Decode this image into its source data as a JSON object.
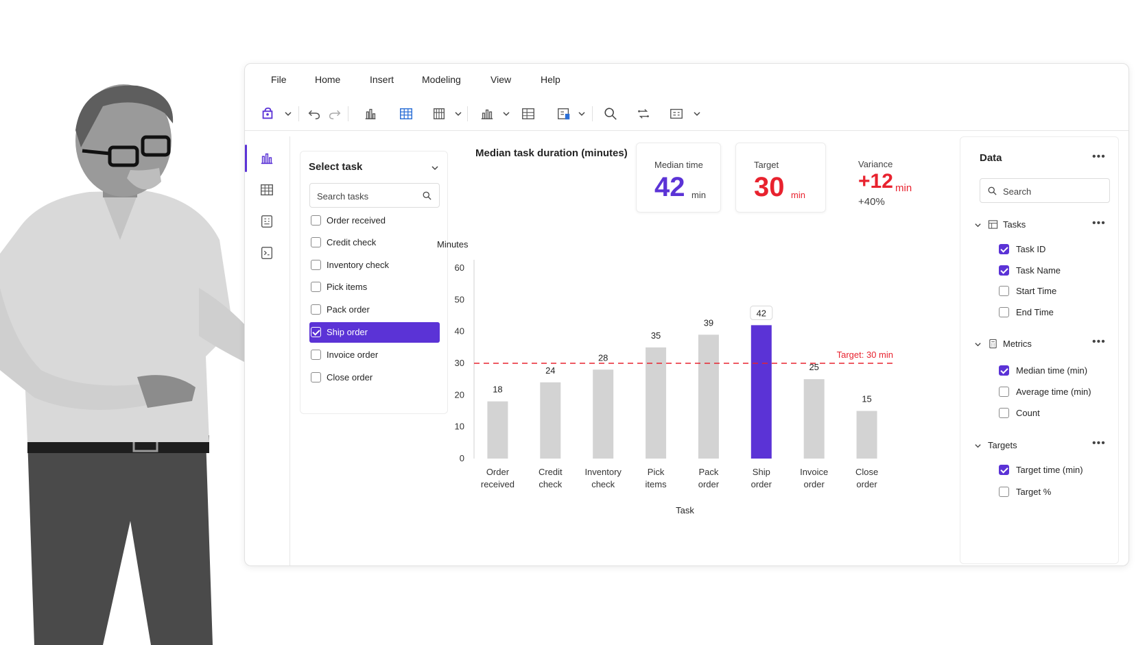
{
  "menu": [
    "File",
    "Home",
    "Insert",
    "Modeling",
    "View",
    "Help"
  ],
  "toolbar_icons": [
    "save-icon",
    "undo-icon",
    "redo-icon",
    "bar-chart-icon",
    "table-icon",
    "matrix-icon",
    "column-chart-icon",
    "grid-icon",
    "card-icon",
    "search-icon",
    "transform-icon",
    "options-icon"
  ],
  "rail_icons": [
    "report-view-icon",
    "table-view-icon",
    "model-view-icon",
    "dax-query-icon"
  ],
  "slicer": {
    "title": "Select task",
    "search_placeholder": "Search tasks",
    "items": [
      {
        "label": "Order received",
        "checked": false
      },
      {
        "label": "Credit check",
        "checked": false
      },
      {
        "label": "Inventory check",
        "checked": false
      },
      {
        "label": "Pick items",
        "checked": false
      },
      {
        "label": "Pack order",
        "checked": false
      },
      {
        "label": "Ship order",
        "checked": true
      },
      {
        "label": "Invoice order",
        "checked": false
      },
      {
        "label": "Close order",
        "checked": false
      }
    ]
  },
  "chart_title": "Median task duration (minutes)",
  "kpis": {
    "median": {
      "label": "Median time",
      "value": "42",
      "unit": "min"
    },
    "target": {
      "label": "Target",
      "value": "30",
      "unit": "min"
    },
    "variance": {
      "label": "Variance",
      "value": "+12",
      "unit": "min",
      "sub": "+40%"
    }
  },
  "colors": {
    "accent": "#5b33d6",
    "bar": "#d3d3d3",
    "target": "#e8222e"
  },
  "chart_data": {
    "type": "bar",
    "categories": [
      "Order received",
      "Credit check",
      "Inventory check",
      "Pick items",
      "Pack order",
      "Ship order",
      "Invoice order",
      "Close order"
    ],
    "category_lines": [
      [
        "Order",
        "received"
      ],
      [
        "Credit",
        "check"
      ],
      [
        "Inventory",
        "check"
      ],
      [
        "Pick",
        "items"
      ],
      [
        "Pack",
        "order"
      ],
      [
        "Ship",
        "order"
      ],
      [
        "Invoice",
        "order"
      ],
      [
        "Close",
        "order"
      ]
    ],
    "values": [
      18,
      24,
      28,
      35,
      39,
      42,
      25,
      15
    ],
    "highlight_index": 5,
    "ylim": [
      0,
      60
    ],
    "yticks": [
      0,
      10,
      20,
      30,
      40,
      50,
      60
    ],
    "ylabel": "Minutes",
    "xlabel": "Task",
    "target_value": 30,
    "target_label": "Target: 30 min",
    "grid": false
  },
  "data_panel": {
    "title": "Data",
    "search_placeholder": "Search",
    "groups": [
      {
        "name": "Tasks",
        "icon": "table-icon",
        "fields": [
          {
            "label": "Task ID",
            "checked": true
          },
          {
            "label": "Task Name",
            "checked": true
          },
          {
            "label": "Start Time",
            "checked": false
          },
          {
            "label": "End Time",
            "checked": false
          }
        ]
      },
      {
        "name": "Metrics",
        "icon": "calculator-icon",
        "fields": [
          {
            "label": "Median time (min)",
            "checked": true
          },
          {
            "label": "Average time (min)",
            "checked": false
          },
          {
            "label": "Count",
            "checked": false
          }
        ]
      },
      {
        "name": "Targets",
        "icon": "",
        "fields": [
          {
            "label": "Target time (min)",
            "checked": true
          },
          {
            "label": "Target %",
            "checked": false
          }
        ]
      }
    ]
  }
}
